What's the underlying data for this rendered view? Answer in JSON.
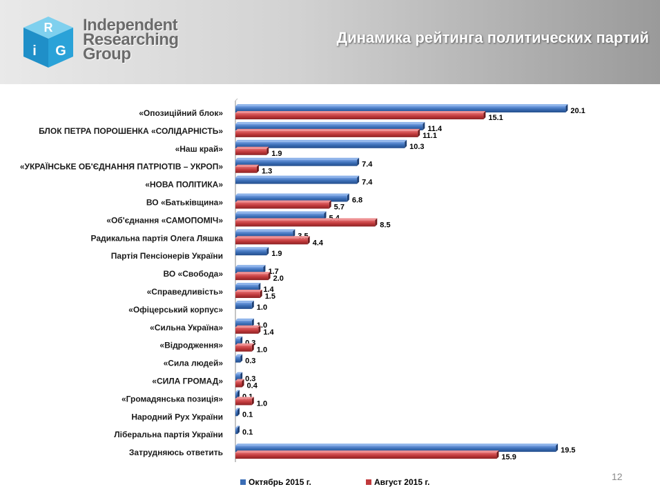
{
  "header": {
    "logo_lines": [
      "Independent",
      "Researching",
      "Group"
    ],
    "logo_letters": [
      "R",
      "i",
      "G"
    ],
    "title": "Динамика рейтинга политических партий"
  },
  "colors": {
    "october": "#3a6db5",
    "august": "#c0393b"
  },
  "chart_data": {
    "type": "bar",
    "orientation": "horizontal",
    "title": "",
    "xlabel": "",
    "ylabel": "",
    "xlim": [
      0,
      21
    ],
    "categories": [
      "«Опозиційний блок»",
      "БЛОК ПЕТРА ПОРОШЕНКА «СОЛІДАРНІСТЬ»",
      "«Наш край»",
      "«УКРАЇНСЬКЕ ОБ'ЄДНАННЯ ПАТРІОТІВ – УКРОП»",
      "«НОВА ПОЛІТИКА»",
      "ВО «Батьківщина»",
      "«Об'єднання «САМОПОМІЧ»",
      "Радикальна партія Олега Ляшка",
      "Партія Пенсіонерів України",
      "ВО «Свобода»",
      "«Справедливість»",
      "«Офіцерський корпус»",
      "«Сильна Україна»",
      "«Відродження»",
      "«Сила людей»",
      "«СИЛА ГРОМАД»",
      "«Громадянська позиція»",
      "Народний Рух України",
      "Ліберальна партія України",
      "Затрудняюсь ответить"
    ],
    "series": [
      {
        "name": "Октябрь 2015 г.",
        "values": [
          20.1,
          11.4,
          10.3,
          7.4,
          7.4,
          6.8,
          5.4,
          3.5,
          1.9,
          1.7,
          1.4,
          1.0,
          1.0,
          0.3,
          0.3,
          0.3,
          0.1,
          0.1,
          0.1,
          19.5
        ]
      },
      {
        "name": "Август 2015 г.",
        "values": [
          15.1,
          11.1,
          1.9,
          1.3,
          null,
          5.7,
          8.5,
          4.4,
          null,
          2.0,
          1.5,
          null,
          1.4,
          1.0,
          null,
          0.4,
          1.0,
          null,
          null,
          15.9
        ]
      }
    ],
    "legend_position": "bottom",
    "grid": false
  },
  "page_number": "12"
}
